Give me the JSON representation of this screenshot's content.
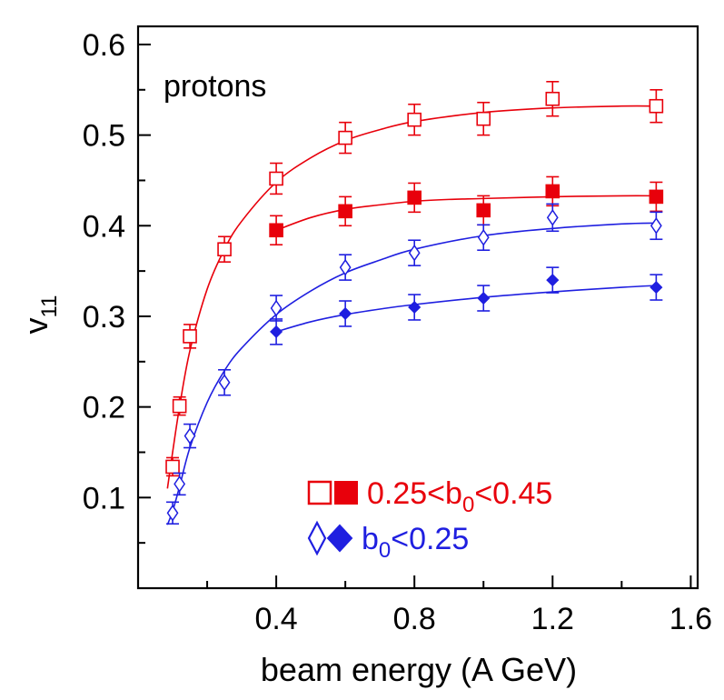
{
  "chart_data": {
    "type": "scatter",
    "xlabel": "beam energy (A GeV)",
    "ylabel": "v",
    "ylabel_sub": "11",
    "annotation": "protons",
    "xlim": [
      0.0,
      1.62
    ],
    "ylim": [
      0.0,
      0.62
    ],
    "xticks": [
      0.4,
      0.8,
      1.2,
      1.6
    ],
    "xtick_labels": [
      "0.4",
      "0.8",
      "1.2",
      "1.6"
    ],
    "xminor": [
      0.2,
      0.6,
      1.0,
      1.4
    ],
    "yticks": [
      0.1,
      0.2,
      0.3,
      0.4,
      0.5,
      0.6
    ],
    "ytick_labels": [
      "0.1",
      "0.2",
      "0.3",
      "0.4",
      "0.5",
      "0.6"
    ],
    "yminor": [
      0.05,
      0.15,
      0.25,
      0.35,
      0.45,
      0.55
    ],
    "grid": false,
    "legend": {
      "placement": "bottom-right",
      "entries": [
        {
          "text_main": "0.25<b",
          "text_sub": "0",
          "text_tail": "<0.45",
          "color": "#e8000b",
          "marker": "square"
        },
        {
          "text_main": "b",
          "text_sub": "0",
          "text_tail": "<0.25",
          "color": "#1f1fe0",
          "marker": "diamond"
        }
      ]
    },
    "series": [
      {
        "color": "#e8000b",
        "marker": "square",
        "filled": false,
        "x": [
          0.1,
          0.12,
          0.15,
          0.25,
          0.4,
          0.6,
          0.8,
          1.0,
          1.2,
          1.5
        ],
        "y": [
          0.134,
          0.201,
          0.278,
          0.374,
          0.452,
          0.497,
          0.517,
          0.518,
          0.54,
          0.532
        ],
        "err": [
          0.01,
          0.01,
          0.013,
          0.014,
          0.017,
          0.017,
          0.017,
          0.018,
          0.019,
          0.018
        ]
      },
      {
        "color": "#e8000b",
        "marker": "square",
        "filled": true,
        "x": [
          0.4,
          0.6,
          0.8,
          1.0,
          1.2,
          1.5
        ],
        "y": [
          0.395,
          0.416,
          0.431,
          0.417,
          0.438,
          0.432
        ],
        "err": [
          0.016,
          0.016,
          0.016,
          0.016,
          0.016,
          0.016
        ]
      },
      {
        "color": "#1f1fe0",
        "marker": "diamond",
        "filled": false,
        "x": [
          0.1,
          0.12,
          0.15,
          0.25,
          0.4,
          0.6,
          0.8,
          1.0,
          1.2,
          1.5
        ],
        "y": [
          0.083,
          0.115,
          0.168,
          0.227,
          0.309,
          0.354,
          0.37,
          0.387,
          0.409,
          0.4
        ],
        "err": [
          0.012,
          0.012,
          0.013,
          0.014,
          0.014,
          0.014,
          0.014,
          0.014,
          0.015,
          0.015
        ]
      },
      {
        "color": "#1f1fe0",
        "marker": "diamond",
        "filled": true,
        "x": [
          0.4,
          0.6,
          0.8,
          1.0,
          1.2,
          1.5
        ],
        "y": [
          0.283,
          0.303,
          0.31,
          0.32,
          0.34,
          0.332
        ],
        "err": [
          0.014,
          0.014,
          0.014,
          0.014,
          0.014,
          0.014
        ]
      }
    ],
    "fits": [
      {
        "color": "#e8000b",
        "x": [
          0.085,
          0.1,
          0.12,
          0.15,
          0.2,
          0.25,
          0.3,
          0.4,
          0.5,
          0.6,
          0.7,
          0.8,
          1.0,
          1.2,
          1.4,
          1.5
        ],
        "y": [
          0.11,
          0.15,
          0.2,
          0.262,
          0.33,
          0.374,
          0.405,
          0.448,
          0.475,
          0.494,
          0.506,
          0.515,
          0.525,
          0.53,
          0.532,
          0.532
        ]
      },
      {
        "color": "#e8000b",
        "x": [
          0.4,
          0.5,
          0.6,
          0.7,
          0.8,
          0.9,
          1.0,
          1.2,
          1.4,
          1.5
        ],
        "y": [
          0.395,
          0.409,
          0.418,
          0.423,
          0.427,
          0.429,
          0.43,
          0.432,
          0.433,
          0.433
        ]
      },
      {
        "color": "#1f1fe0",
        "x": [
          0.085,
          0.1,
          0.12,
          0.15,
          0.2,
          0.25,
          0.3,
          0.4,
          0.5,
          0.6,
          0.7,
          0.8,
          1.0,
          1.2,
          1.4,
          1.5
        ],
        "y": [
          0.07,
          0.085,
          0.112,
          0.155,
          0.205,
          0.24,
          0.265,
          0.302,
          0.328,
          0.348,
          0.362,
          0.374,
          0.389,
          0.397,
          0.402,
          0.403
        ]
      },
      {
        "color": "#1f1fe0",
        "x": [
          0.4,
          0.5,
          0.6,
          0.7,
          0.8,
          1.0,
          1.2,
          1.4,
          1.5
        ],
        "y": [
          0.283,
          0.294,
          0.302,
          0.308,
          0.313,
          0.321,
          0.327,
          0.332,
          0.334
        ]
      }
    ]
  }
}
